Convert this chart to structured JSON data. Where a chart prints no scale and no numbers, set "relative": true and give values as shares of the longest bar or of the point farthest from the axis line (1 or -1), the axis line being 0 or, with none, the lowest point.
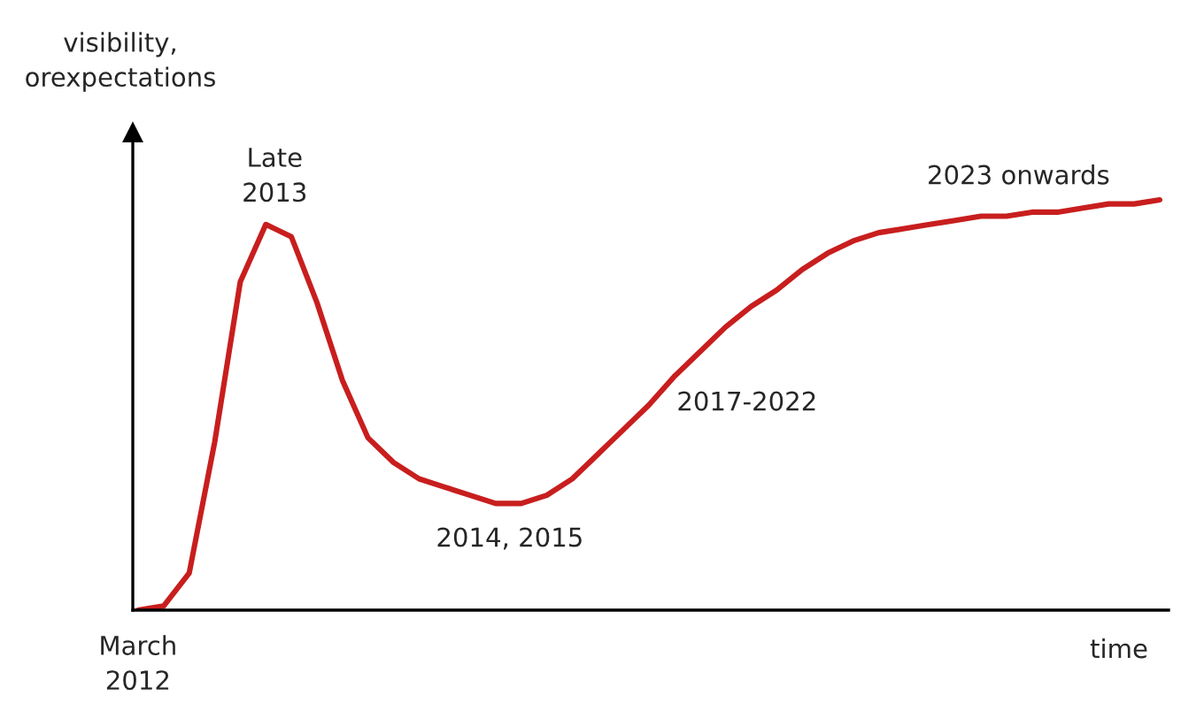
{
  "chart_data": {
    "type": "line",
    "relative": true,
    "xlabel": "time",
    "ylabel": "visibility,\norexpectations",
    "categories": [
      null,
      null,
      null,
      null,
      null,
      null,
      null,
      null,
      null,
      null,
      null,
      null,
      null,
      null,
      null,
      null,
      null,
      null,
      null,
      null,
      null,
      null,
      null,
      null,
      null,
      null,
      null,
      null,
      null,
      null,
      null,
      null,
      null,
      null,
      null,
      null,
      null,
      null,
      null,
      null,
      null
    ],
    "series": [
      {
        "color": "#c81e1e",
        "values": [
          0,
          0.01,
          0.09,
          0.41,
          0.8,
          0.94,
          0.91,
          0.75,
          0.56,
          0.42,
          0.36,
          0.32,
          0.3,
          0.28,
          0.26,
          0.26,
          0.28,
          0.32,
          0.38,
          0.44,
          0.5,
          0.57,
          0.63,
          0.69,
          0.74,
          0.78,
          0.83,
          0.87,
          0.9,
          0.92,
          0.93,
          0.94,
          0.95,
          0.96,
          0.96,
          0.97,
          0.97,
          0.98,
          0.99,
          0.99,
          1.0
        ]
      }
    ],
    "annotations": [
      "Late\n2013",
      "2014, 2015",
      "2017-2022",
      "2023 onwards",
      "March\n2012"
    ],
    "marker": "none",
    "line_style": "solid"
  }
}
